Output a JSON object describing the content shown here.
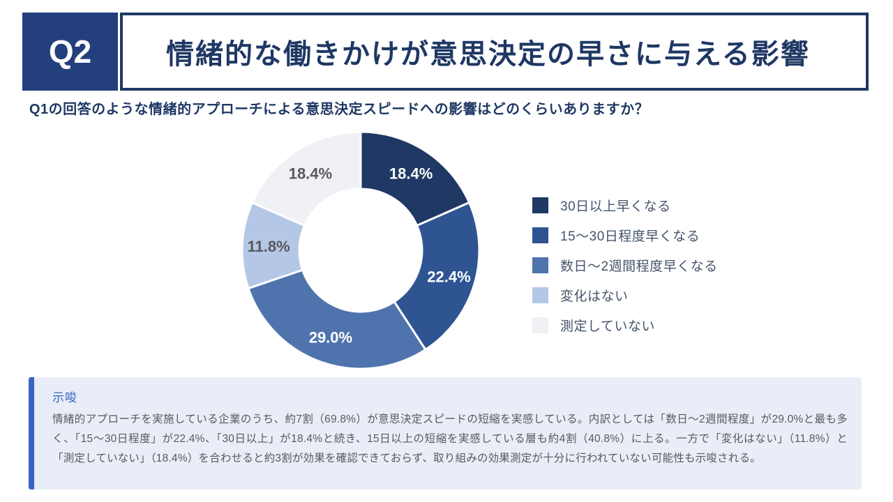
{
  "header": {
    "q_label": "Q2",
    "title": "情緒的な働きかけが意思決定の早さに与える影響"
  },
  "question": "Q1の回答のような情緒的アプローチによる意思決定スピードへの影響はどのくらいありますか？",
  "chart_data": {
    "type": "pie",
    "subtype": "donut",
    "start_angle": "top",
    "direction": "clockwise",
    "value_format": "percent",
    "legend_position": "right",
    "inner_radius_ratio": 0.52,
    "segments": [
      {
        "label": "30日以上早くなる",
        "value": 18.4,
        "color": "#1F3864",
        "label_color": "#FFFFFF"
      },
      {
        "label": "15～30日程度早くなる",
        "value": 22.4,
        "color": "#2E5492",
        "label_color": "#FFFFFF"
      },
      {
        "label": "数日～2週間程度早くなる",
        "value": 29.0,
        "color": "#4F74AD",
        "label_color": "#FFFFFF"
      },
      {
        "label": "変化はない",
        "value": 11.8,
        "color": "#B4C7E7",
        "label_color": "#595959"
      },
      {
        "label": "測定していない",
        "value": 18.4,
        "color": "#EFF1F5",
        "label_color": "#595959"
      }
    ]
  },
  "insight": {
    "heading": "示唆",
    "body": "情緒的アプローチを実施している企業のうち、約7割（69.8%）が意思決定スピードの短縮を実感している。内訳としては「数日～2週間程度」が29.0%と最も多く、「15～30日程度」が22.4%、「30日以上」が18.4%と続き、15日以上の短縮を実感している層も約4割（40.8%）に上る。一方で「変化はない」（11.8%）と「測定していない」（18.4%）を合わせると約3割が効果を確認できておらず、取り組みの効果測定が十分に行われていない可能性も示唆される。",
    "accent_color": "#3A63C6"
  },
  "colors": {
    "header_navy": "#1F3864",
    "badge_navy": "#23407C",
    "insight_bg": "#E9EDF7",
    "insight_heading": "#3565C5",
    "body_gray": "#595959",
    "legend_text": "#44546A"
  }
}
